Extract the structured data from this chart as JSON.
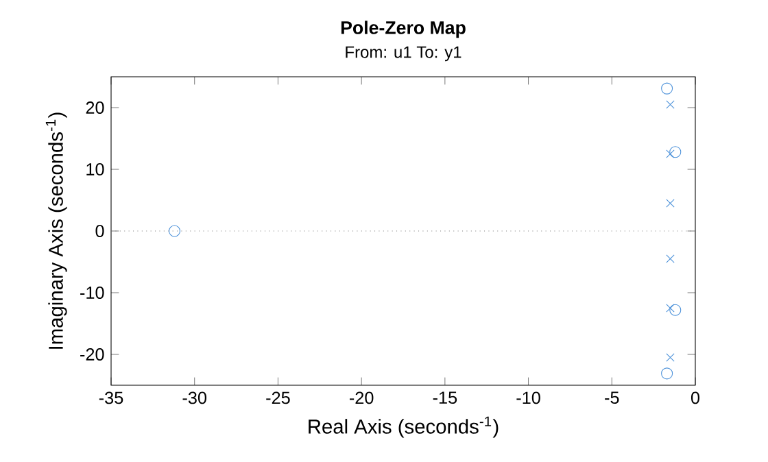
{
  "chart_data": {
    "type": "scatter",
    "title": "Pole-Zero Map",
    "subtitle": "From: u1  To: y1",
    "xlabel": "Real Axis (seconds$^{-1}$)",
    "ylabel": "Imaginary Axis (seconds$^{-1}$)",
    "xlim": [
      -35,
      0
    ],
    "ylim": [
      -25,
      25
    ],
    "xticks": [
      -35,
      -30,
      -25,
      -20,
      -15,
      -10,
      -5,
      0
    ],
    "yticks": [
      -20,
      -10,
      0,
      10,
      20
    ],
    "ref_lines": [
      {
        "axis": "y",
        "value": 0,
        "color": "#808080",
        "line_style": "dotted"
      }
    ],
    "series": [
      {
        "marker": "circle",
        "color": "#4a90d9",
        "x": [
          -31.2,
          -1.7,
          -1.2,
          -1.2,
          -1.7
        ],
        "values": [
          0,
          23.1,
          12.8,
          -12.8,
          -23.1
        ]
      },
      {
        "marker": "cross",
        "color": "#4a90d9",
        "x": [
          -1.5,
          -1.5,
          -1.5,
          -1.5,
          -1.5,
          -1.5
        ],
        "values": [
          20.5,
          12.5,
          4.5,
          -4.5,
          -12.5,
          -20.5
        ]
      }
    ]
  }
}
